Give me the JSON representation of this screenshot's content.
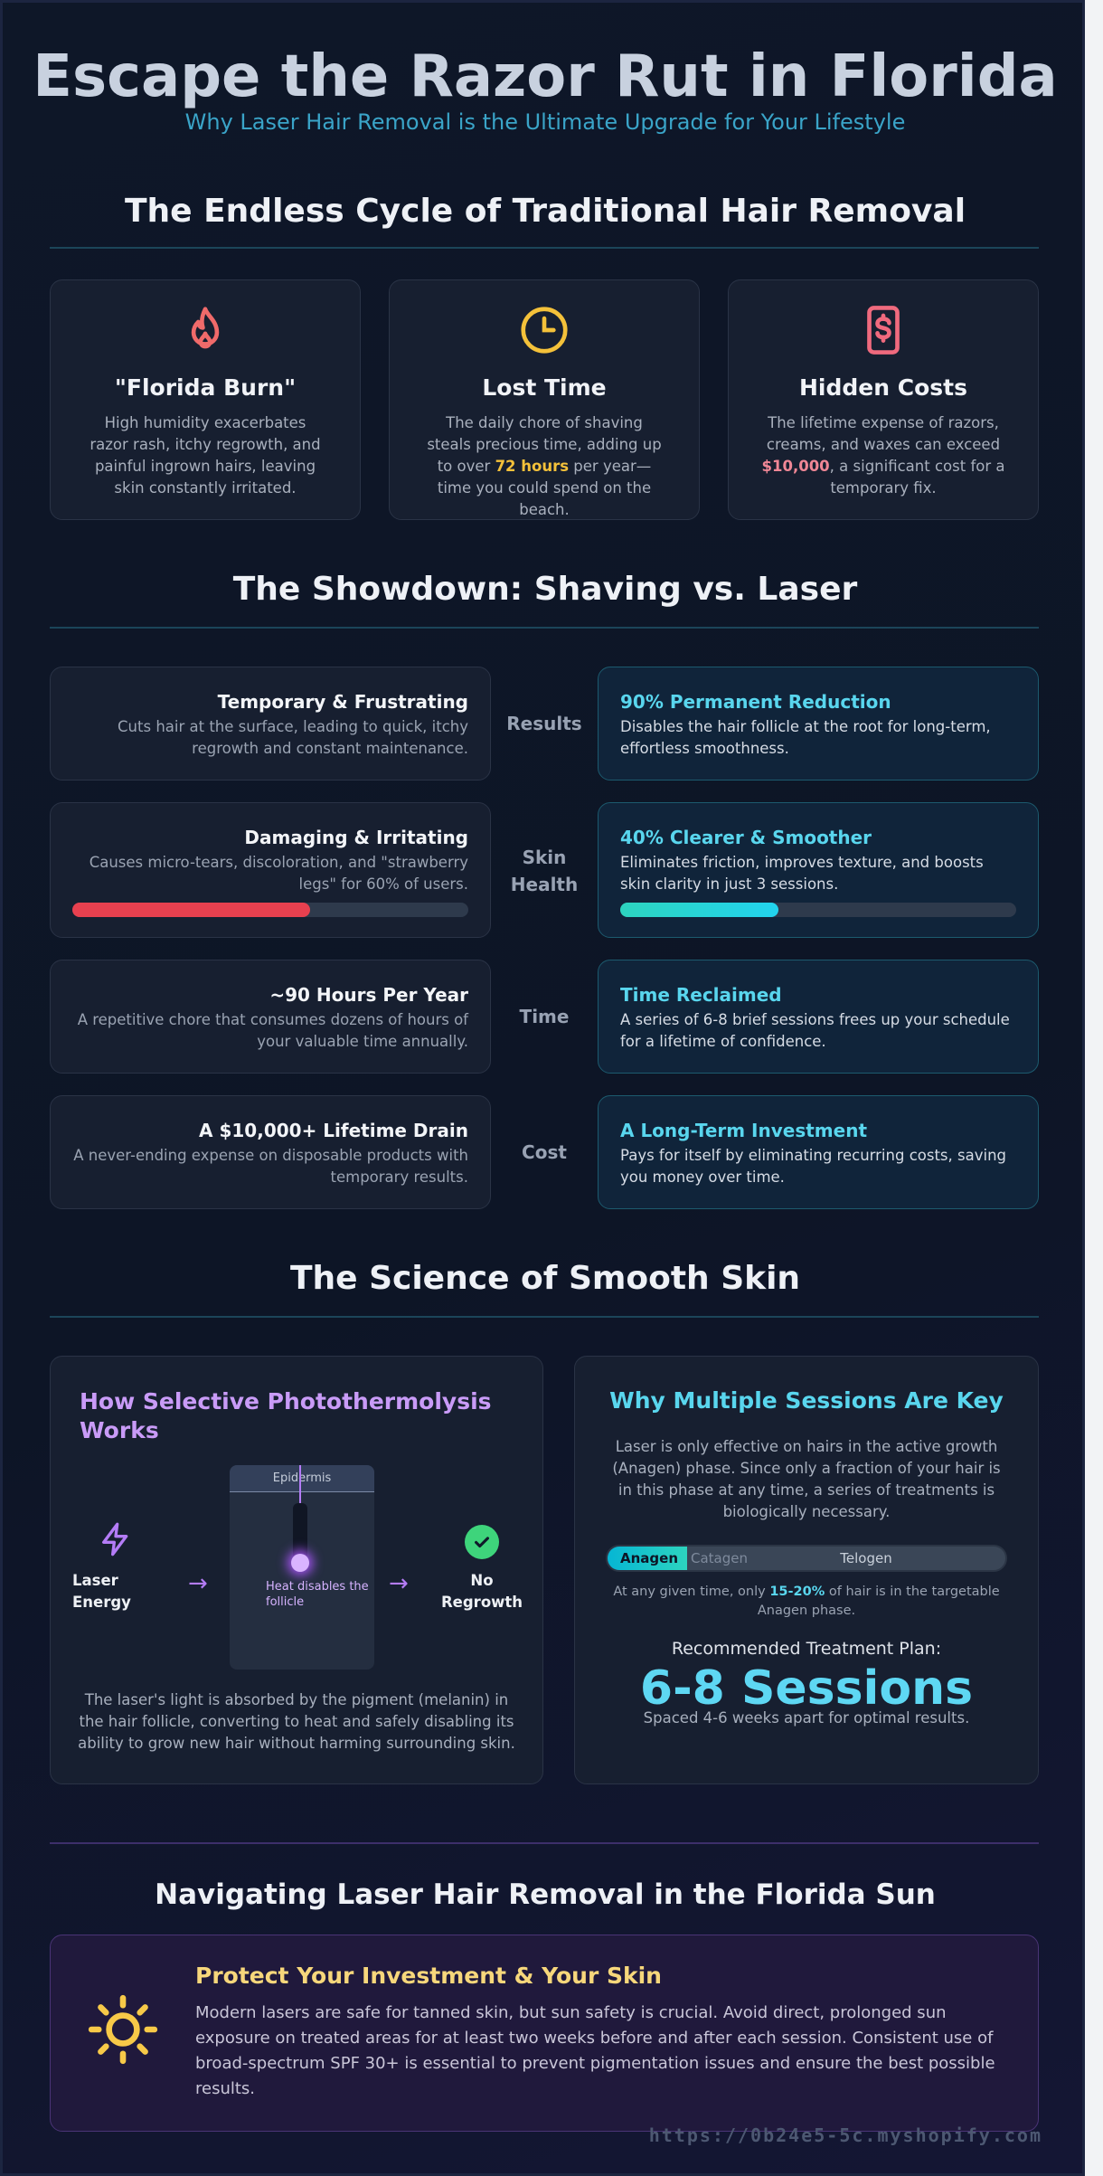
{
  "header": {
    "title": "Escape the Razor Rut in Florida",
    "subtitle": "Why Laser Hair Removal is the Ultimate Upgrade for Your Lifestyle"
  },
  "problems": {
    "title": "The Endless Cycle of Traditional Hair Removal",
    "cards": [
      {
        "icon": "flame-icon",
        "title": "\"Florida Burn\"",
        "text": "High humidity exacerbates razor rash, itchy regrowth, and painful ingrown hairs, leaving skin constantly irritated."
      },
      {
        "icon": "clock-icon",
        "title": "Lost Time",
        "text_before": "The daily chore of shaving steals precious time, adding up to over ",
        "highlight": "72 hours",
        "text_after": " per year—time you could spend on the beach."
      },
      {
        "icon": "dollar-icon",
        "title": "Hidden Costs",
        "text_before": "The lifetime expense of razors, creams, and waxes can exceed ",
        "highlight": "$10,000",
        "text_after": ", a significant cost for a temporary fix."
      }
    ]
  },
  "showdown": {
    "title": "The Showdown: Shaving vs. Laser",
    "rows": [
      {
        "label": "Results",
        "shaving_title": "Temporary & Frustrating",
        "shaving_text": "Cuts hair at the surface, leading to quick, itchy regrowth and constant maintenance.",
        "laser_title": "90% Permanent Reduction",
        "laser_text": "Disables the hair follicle at the root for long-term, effortless smoothness."
      },
      {
        "label": "Skin Health",
        "shaving_title": "Damaging & Irritating",
        "shaving_text": "Causes micro-tears, discoloration, and \"strawberry legs\" for 60% of users.",
        "laser_title": "40% Clearer & Smoother",
        "laser_text": "Eliminates friction, improves texture, and boosts skin clarity in just 3 sessions.",
        "shaving_bar": 0.6,
        "laser_bar": 0.4
      },
      {
        "label": "Time",
        "shaving_title": "~90 Hours Per Year",
        "shaving_text": "A repetitive chore that consumes dozens of hours of your valuable time annually.",
        "laser_title": "Time Reclaimed",
        "laser_text": "A series of 6-8 brief sessions frees up your schedule for a lifetime of confidence."
      },
      {
        "label": "Cost",
        "shaving_title": "A $10,000+ Lifetime Drain",
        "shaving_text": "A never-ending expense on disposable products with temporary results.",
        "laser_title": "A Long-Term Investment",
        "laser_text": "Pays for itself by eliminating recurring costs, saving you money over time."
      }
    ]
  },
  "science": {
    "title": "The Science of Smooth Skin",
    "photo": {
      "title": "How Selective Photothermolysis Works",
      "laser_label": "Laser Energy",
      "epidermis_label": "Epidermis",
      "heat_label": "Heat disables the follicle",
      "result_label": "No Regrowth",
      "description": "The laser's light is absorbed by the pigment (melanin) in the hair follicle, converting to heat and safely disabling its ability to grow new hair without harming surrounding skin."
    },
    "sessions": {
      "title": "Why Multiple Sessions Are Key",
      "description": "Laser is only effective on hairs in the active growth (Anagen) phase. Since only a fraction of your hair is in this phase at any time, a series of treatments is biologically necessary.",
      "phases": [
        {
          "name": "Anagen",
          "share": 0.2
        },
        {
          "name": "Catagen",
          "share": 0.1
        },
        {
          "name": "Telogen",
          "share": 0.7
        }
      ],
      "note_before": "At any given time, only ",
      "note_highlight": "15-20%",
      "note_after": " of hair is in the targetable Anagen phase.",
      "plan_label": "Recommended Treatment Plan:",
      "plan_value": "6-8 Sessions",
      "plan_sub": "Spaced 4-6 weeks apart for optimal results."
    }
  },
  "florida": {
    "title": "Navigating Laser Hair Removal in the Florida Sun",
    "card_title": "Protect Your Investment & Your Skin",
    "card_text": "Modern lasers are safe for tanned skin, but sun safety is crucial. Avoid direct, prolonged sun exposure on treated areas for at least two weeks before and after each session. Consistent use of broad-spectrum SPF 30+ is essential to prevent pigmentation issues and ensure the best possible results."
  },
  "footer": {
    "url": "https://0b24e5-5c.myshopify.com"
  },
  "colors": {
    "accent_cyan": "#59d6ee",
    "accent_purple": "#c99bf7",
    "danger": "#e8404f",
    "gold": "#f7d77b"
  }
}
